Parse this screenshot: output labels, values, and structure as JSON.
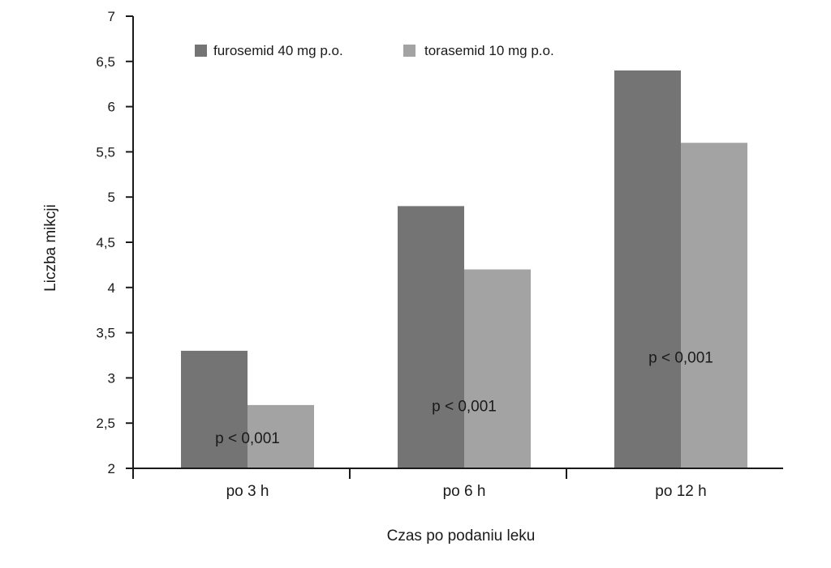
{
  "colors": {
    "axis": "#1a1a1a",
    "series_dark": "#747474",
    "series_light": "#a3a3a3",
    "background": "#ffffff"
  },
  "chart_data": {
    "type": "bar",
    "categories": [
      "po 3 h",
      "po 6 h",
      "po 12 h"
    ],
    "series": [
      {
        "name": "furosemid 40 mg p.o.",
        "values": [
          3.3,
          4.9,
          6.4
        ],
        "color": "#747474"
      },
      {
        "name": "torasemid 10 mg p.o.",
        "values": [
          2.7,
          4.2,
          5.6
        ],
        "color": "#a3a3a3"
      }
    ],
    "xlabel": "Czas po podaniu leku",
    "ylabel": "Liczba mikcji",
    "ylim": [
      2,
      7
    ],
    "yticks": [
      2,
      2.5,
      3,
      3.5,
      4,
      4.5,
      5,
      5.5,
      6,
      6.5,
      7
    ],
    "ytick_labels": [
      "2",
      "2,5",
      "3",
      "3,5",
      "4",
      "4,5",
      "5",
      "5,5",
      "6",
      "6,5",
      "7"
    ],
    "annotations": [
      {
        "category": "po 3 h",
        "text": "p < 0,001",
        "y": 2.28
      },
      {
        "category": "po 6 h",
        "text": "p < 0,001",
        "y": 2.63
      },
      {
        "category": "po 12 h",
        "text": "p < 0,001",
        "y": 3.17
      }
    ],
    "legend_position": "top",
    "grid": false
  }
}
